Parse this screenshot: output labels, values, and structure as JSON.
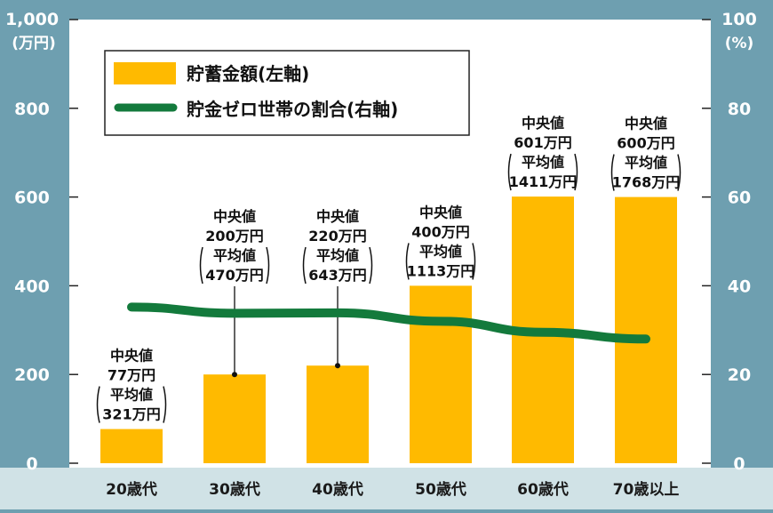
{
  "chart_data": {
    "type": "bar",
    "categories": [
      "20歳代",
      "30歳代",
      "40歳代",
      "50歳代",
      "60歳代",
      "70歳以上"
    ],
    "series": [
      {
        "name": "貯蓄金額(左軸)",
        "type": "bar",
        "axis": "left",
        "color": "#ffba00",
        "values": [
          77,
          200,
          220,
          400,
          601,
          600
        ]
      },
      {
        "name": "貯金ゼロ世帯の割合(右軸)",
        "type": "line",
        "axis": "right",
        "color": "#137a3c",
        "values": [
          35.2,
          33.8,
          33.9,
          32.0,
          29.5,
          28.0
        ]
      }
    ],
    "annotations": [
      [
        "中央値",
        "77万円",
        "平均値",
        "321万円"
      ],
      [
        "中央値",
        "200万円",
        "平均値",
        "470万円"
      ],
      [
        "中央値",
        "220万円",
        "平均値",
        "643万円"
      ],
      [
        "中央値",
        "400万円",
        "平均値",
        "1113万円"
      ],
      [
        "中央値",
        "601万円",
        "平均値",
        "1411万円"
      ],
      [
        "中央値",
        "600万円",
        "平均値",
        "1768万円"
      ]
    ],
    "left_axis": {
      "unit": "(万円)",
      "range": [
        0,
        1000
      ],
      "tick_labels": [
        "0",
        "200",
        "400",
        "600",
        "800",
        "1,000"
      ]
    },
    "right_axis": {
      "unit": "(%)",
      "range": [
        0,
        100
      ],
      "tick_labels": [
        "0",
        "20",
        "40",
        "60",
        "80",
        "100"
      ]
    },
    "legend_position": "top-left",
    "grid": false
  }
}
